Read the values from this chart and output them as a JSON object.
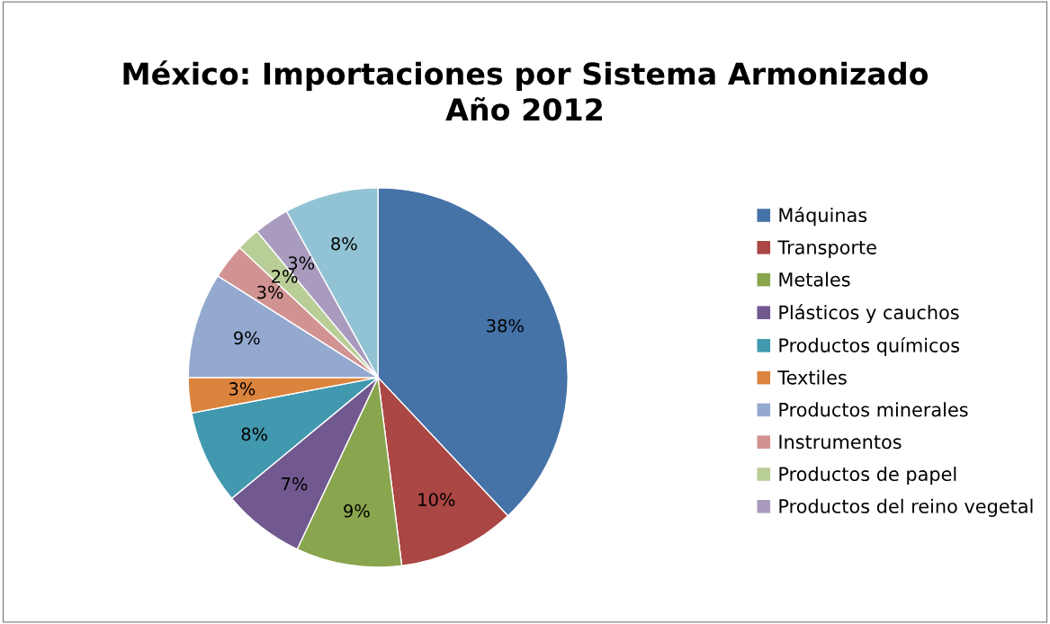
{
  "chart_data": {
    "type": "pie",
    "title": "México: Importaciones por Sistema Armonizado\nAño 2012",
    "categories": [
      "Máquinas",
      "Transporte",
      "Metales",
      "Plásticos y cauchos",
      "Productos químicos",
      "Textiles",
      "Productos minerales",
      "Instrumentos",
      "Productos de papel",
      "Productos del reino vegetal",
      null
    ],
    "values": [
      38,
      10,
      9,
      7,
      8,
      3,
      9,
      3,
      2,
      3,
      8
    ],
    "value_labels": [
      "38%",
      "10%",
      "9%",
      "7%",
      "8%",
      "3%",
      "9%",
      "3%",
      "2%",
      "3%",
      "8%"
    ],
    "colors": [
      "#4572a7",
      "#aa4643",
      "#89a54e",
      "#71588f",
      "#4198af",
      "#db843d",
      "#93a9cf",
      "#d19392",
      "#b9cd96",
      "#a99bbd",
      "#92c3d4"
    ],
    "legend": "right"
  }
}
